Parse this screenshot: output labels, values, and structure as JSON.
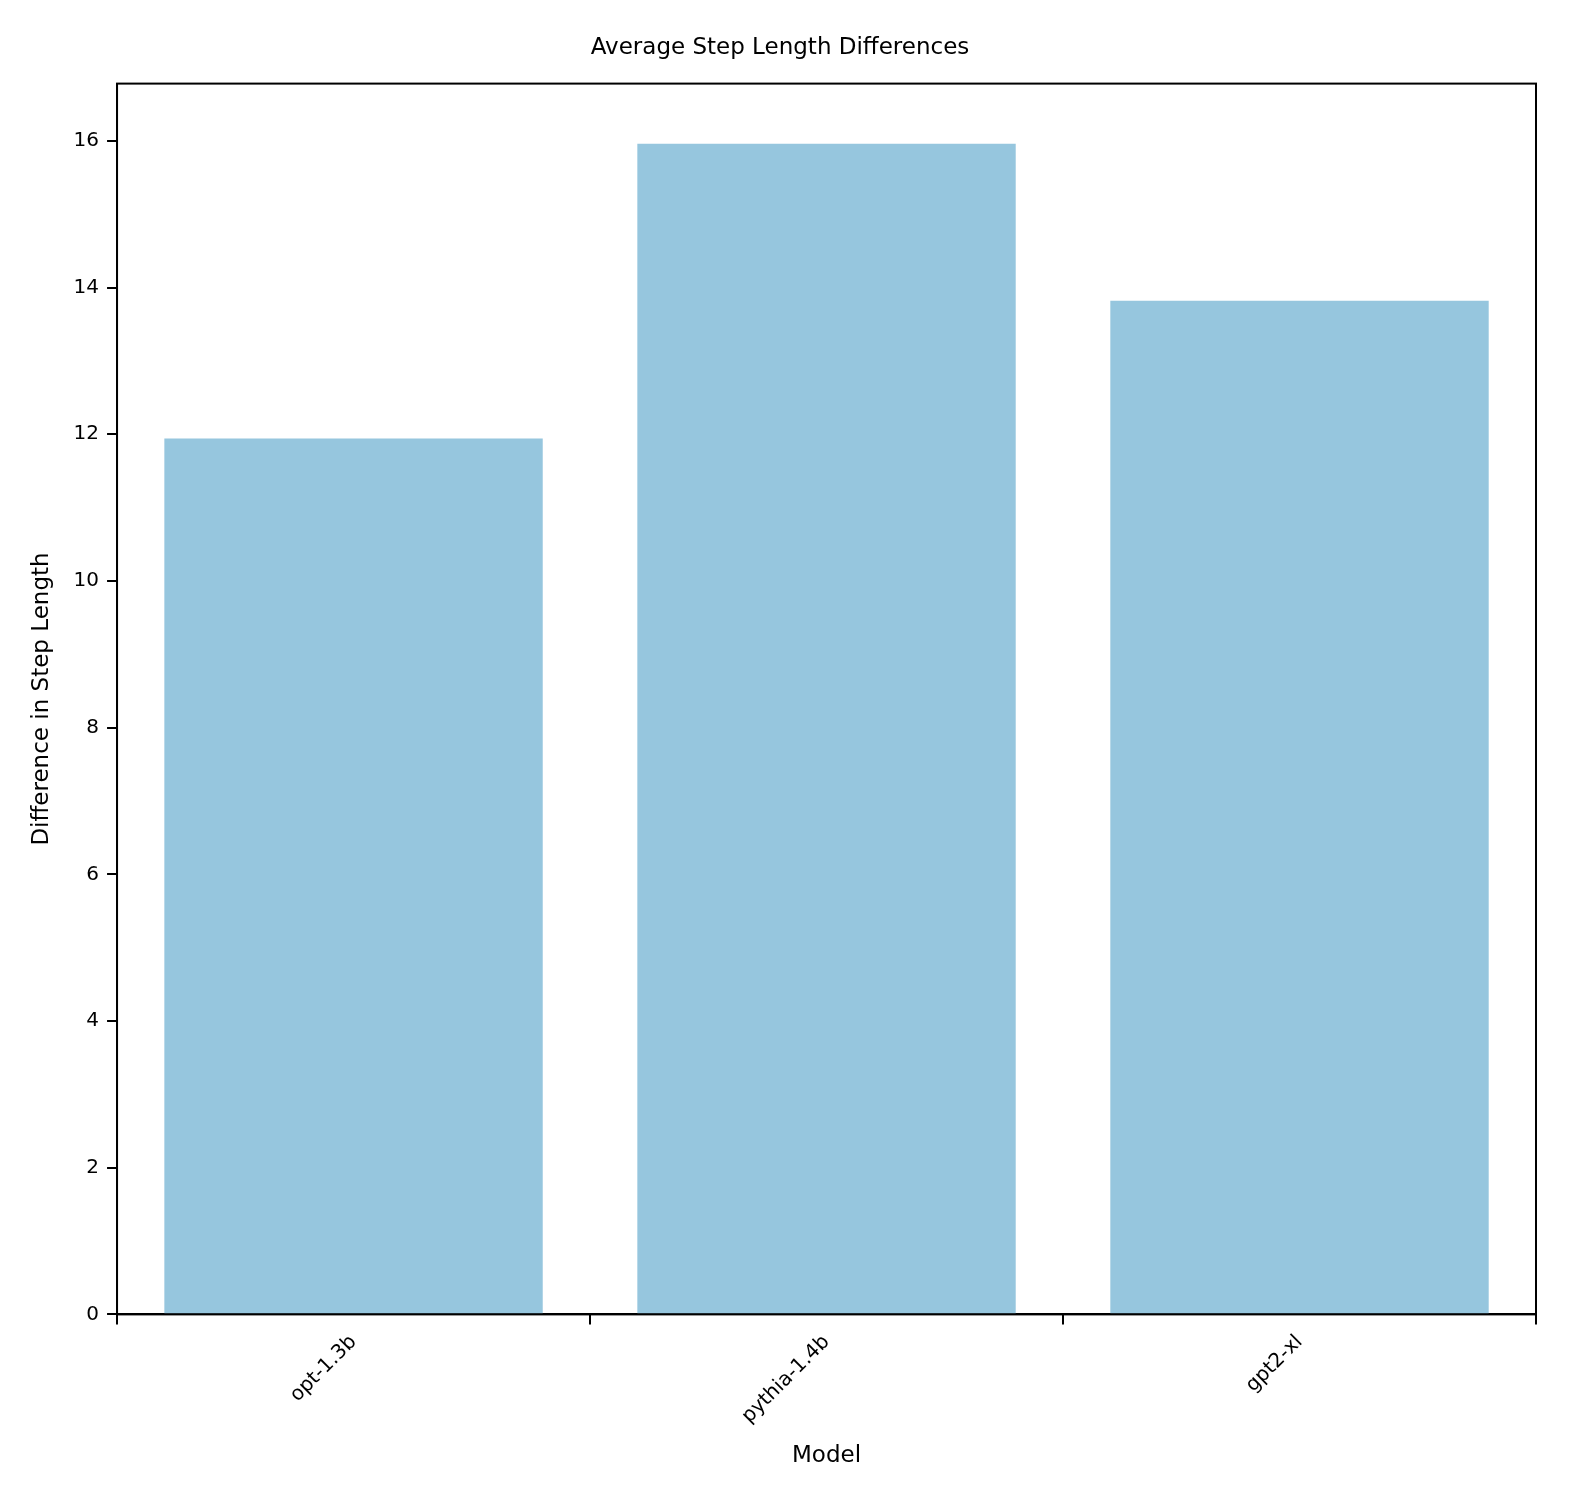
{
  "chart_data": {
    "type": "bar",
    "title": "Average Step Length Differences",
    "x_label": "Model",
    "y_label": "Difference in Step Length",
    "categories": [
      "opt-1.3b",
      "pythia-1.4b",
      "gpt2-xl"
    ],
    "values": [
      11.94,
      15.96,
      13.82
    ],
    "color": "#96c6de",
    "ylim": [
      0,
      16.78
    ],
    "yticks": [
      0,
      2,
      4,
      6,
      8,
      10,
      12,
      14,
      16
    ],
    "grid": false
  }
}
